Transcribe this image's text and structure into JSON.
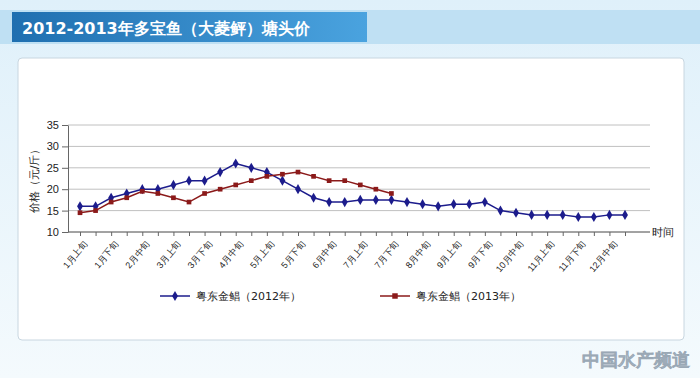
{
  "chart_data": {
    "type": "line",
    "title": "2012-2013年多宝鱼（大菱鲆）塘头价",
    "y_label": "价格（元/斤）",
    "x_label": "时间",
    "annotations": [
      "中国水产频道"
    ],
    "categories": [
      "1月上旬",
      null,
      "1月下旬",
      null,
      "2月中旬",
      null,
      "3月上旬",
      null,
      "3月下旬",
      null,
      "4月中旬",
      null,
      "5月上旬",
      null,
      "5月下旬",
      null,
      "6月中旬",
      null,
      "7月上旬",
      null,
      "7月下旬",
      null,
      "8月中旬",
      null,
      "9月上旬",
      null,
      "9月下旬",
      null,
      "10月中旬",
      null,
      "11月上旬",
      null,
      "11月下旬",
      null,
      "12月中旬",
      null
    ],
    "series": [
      {
        "name": "粤东金鲳（2012年）",
        "color": "#1c1c8c",
        "marker": "diamond",
        "line_style": "solid",
        "values": [
          16,
          16,
          18,
          19,
          20,
          20,
          21,
          22,
          22,
          24,
          26,
          25,
          24,
          22,
          20,
          18,
          17,
          17,
          17.5,
          17.5,
          17.5,
          17,
          16.5,
          16,
          16.5,
          16.5,
          17,
          15,
          14.5,
          14,
          14,
          14,
          13.5,
          13.5,
          14,
          14
        ]
      },
      {
        "name": "粤东金鲳（2013年）",
        "color": "#8b1a1a",
        "marker": "square",
        "line_style": "solid",
        "values": [
          14.5,
          15,
          17,
          18,
          19.5,
          19,
          18,
          17,
          19,
          20,
          21,
          22,
          23,
          23.5,
          24,
          23,
          22,
          22,
          21,
          20,
          19,
          null,
          null,
          null,
          null,
          null,
          null,
          null,
          null,
          null,
          null,
          null,
          null,
          null,
          null,
          null
        ]
      }
    ],
    "ylim": [
      10,
      35
    ],
    "yticks": [
      10,
      15,
      20,
      25,
      30,
      35
    ],
    "grid": true,
    "legend": "bottom"
  }
}
